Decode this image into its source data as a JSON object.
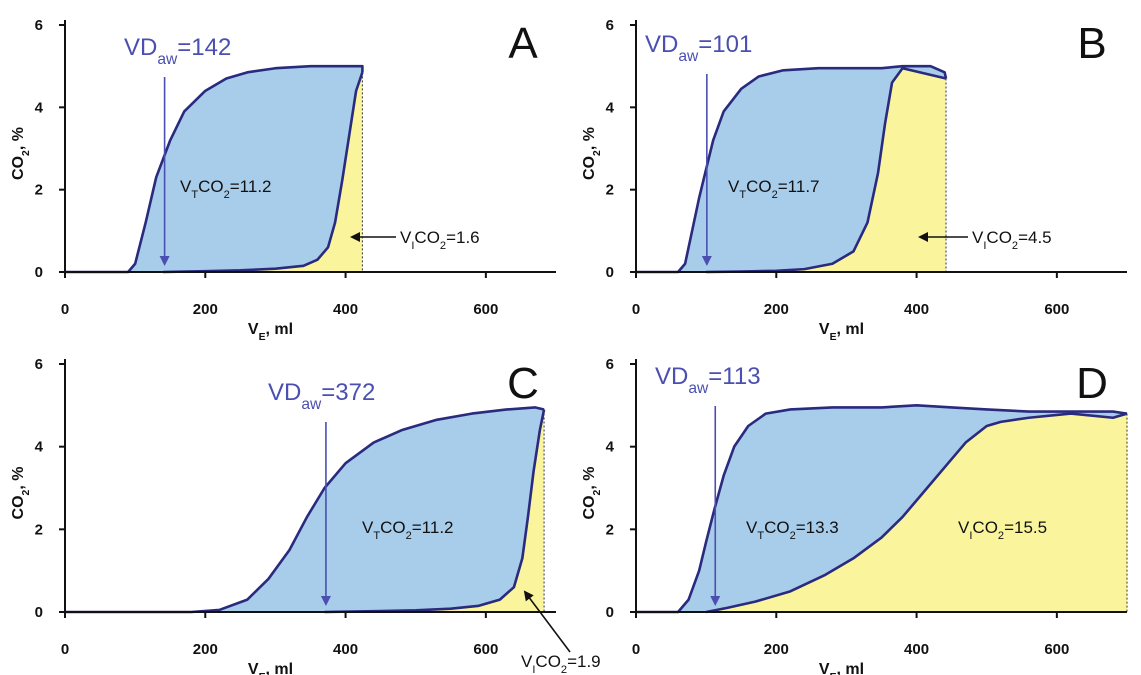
{
  "colors": {
    "blue_fill": "#a8cdea",
    "yellow_fill": "#faf59c",
    "curve": "#2a2a7e",
    "arrow_vd": "#4a4fb0",
    "arrow_vi": "#111111"
  },
  "chart_data": [
    {
      "type": "area",
      "panel": "A",
      "xlabel": {
        "main": "V",
        "sub": "E",
        "rest": ", ml"
      },
      "ylabel": {
        "main": "CO",
        "sub": "2",
        "rest": ", %"
      },
      "xlim": [
        0,
        700
      ],
      "ylim": [
        0,
        6
      ],
      "xticks": [
        "0",
        "200",
        "400",
        "600"
      ],
      "yticks": [
        "0",
        "2",
        "4",
        "6"
      ],
      "vd_label": {
        "pre": "VD",
        "sub": "aw",
        "post": "=142"
      },
      "vd_x": 142,
      "vt_label": {
        "pre": "V",
        "sub": "T",
        "mid": "CO",
        "sub2": "2",
        "post": "=11.2"
      },
      "vi_label": {
        "pre": "V",
        "sub": "I",
        "mid": "CO",
        "sub2": "2",
        "post": "=1.6"
      },
      "end_x": 424,
      "expiratory_curve": [
        [
          0,
          0
        ],
        [
          90,
          0
        ],
        [
          100,
          0.2
        ],
        [
          115,
          1.2
        ],
        [
          130,
          2.3
        ],
        [
          150,
          3.2
        ],
        [
          170,
          3.9
        ],
        [
          200,
          4.4
        ],
        [
          230,
          4.7
        ],
        [
          260,
          4.85
        ],
        [
          300,
          4.95
        ],
        [
          350,
          5.0
        ],
        [
          400,
          5.0
        ],
        [
          424,
          5.0
        ],
        [
          424,
          4.85
        ]
      ],
      "inspiratory_curve": [
        [
          424,
          4.85
        ],
        [
          415,
          4.4
        ],
        [
          405,
          3.3
        ],
        [
          395,
          2.2
        ],
        [
          385,
          1.2
        ],
        [
          375,
          0.6
        ],
        [
          360,
          0.3
        ],
        [
          340,
          0.15
        ],
        [
          300,
          0.08
        ],
        [
          250,
          0.04
        ],
        [
          200,
          0.02
        ],
        [
          140,
          0
        ]
      ]
    },
    {
      "type": "area",
      "panel": "B",
      "xlabel": {
        "main": "V",
        "sub": "E",
        "rest": ", ml"
      },
      "ylabel": {
        "main": "CO",
        "sub": "2",
        "rest": ", %"
      },
      "xlim": [
        0,
        700
      ],
      "ylim": [
        0,
        6
      ],
      "xticks": [
        "0",
        "200",
        "400",
        "600"
      ],
      "yticks": [
        "0",
        "2",
        "4",
        "6"
      ],
      "vd_label": {
        "pre": "VD",
        "sub": "aw",
        "post": "=101"
      },
      "vd_x": 101,
      "vt_label": {
        "pre": "V",
        "sub": "T",
        "mid": "CO",
        "sub2": "2",
        "post": "=11.7"
      },
      "vi_label": {
        "pre": "V",
        "sub": "I",
        "mid": "CO",
        "sub2": "2",
        "post": "=4.5"
      },
      "end_x": 442,
      "expiratory_curve": [
        [
          0,
          0
        ],
        [
          60,
          0
        ],
        [
          70,
          0.2
        ],
        [
          80,
          1.0
        ],
        [
          90,
          1.8
        ],
        [
          100,
          2.5
        ],
        [
          110,
          3.2
        ],
        [
          125,
          3.9
        ],
        [
          150,
          4.45
        ],
        [
          175,
          4.75
        ],
        [
          210,
          4.9
        ],
        [
          260,
          4.95
        ],
        [
          300,
          4.95
        ],
        [
          350,
          4.95
        ],
        [
          380,
          5.0
        ],
        [
          420,
          5.0
        ],
        [
          440,
          4.85
        ],
        [
          442,
          4.7
        ]
      ],
      "inspiratory_curve": [
        [
          442,
          4.7
        ],
        [
          380,
          4.95
        ],
        [
          365,
          4.6
        ],
        [
          355,
          3.6
        ],
        [
          345,
          2.4
        ],
        [
          330,
          1.2
        ],
        [
          310,
          0.5
        ],
        [
          280,
          0.2
        ],
        [
          240,
          0.07
        ],
        [
          200,
          0.03
        ],
        [
          150,
          0.01
        ],
        [
          100,
          0
        ]
      ]
    },
    {
      "type": "area",
      "panel": "C",
      "xlabel": {
        "main": "V",
        "sub": "E",
        "rest": ", ml"
      },
      "ylabel": {
        "main": "CO",
        "sub": "2",
        "rest": ", %"
      },
      "xlim": [
        0,
        700
      ],
      "ylim": [
        0,
        6
      ],
      "xticks": [
        "0",
        "200",
        "400",
        "600"
      ],
      "yticks": [
        "0",
        "2",
        "4",
        "6"
      ],
      "vd_label": {
        "pre": "VD",
        "sub": "aw",
        "post": "=372"
      },
      "vd_x": 372,
      "vt_label": {
        "pre": "V",
        "sub": "T",
        "mid": "CO",
        "sub2": "2",
        "post": "=11.2"
      },
      "vi_label": {
        "pre": "V",
        "sub": "I",
        "mid": "CO",
        "sub2": "2",
        "post": "=1.9"
      },
      "end_x": 683,
      "expiratory_curve": [
        [
          0,
          0
        ],
        [
          180,
          0
        ],
        [
          220,
          0.05
        ],
        [
          260,
          0.3
        ],
        [
          290,
          0.8
        ],
        [
          320,
          1.5
        ],
        [
          345,
          2.3
        ],
        [
          370,
          3.0
        ],
        [
          400,
          3.6
        ],
        [
          440,
          4.1
        ],
        [
          480,
          4.4
        ],
        [
          530,
          4.65
        ],
        [
          580,
          4.8
        ],
        [
          630,
          4.9
        ],
        [
          670,
          4.95
        ],
        [
          683,
          4.9
        ]
      ],
      "inspiratory_curve": [
        [
          683,
          4.9
        ],
        [
          677,
          4.4
        ],
        [
          668,
          3.4
        ],
        [
          660,
          2.3
        ],
        [
          652,
          1.3
        ],
        [
          640,
          0.6
        ],
        [
          620,
          0.3
        ],
        [
          590,
          0.15
        ],
        [
          550,
          0.08
        ],
        [
          500,
          0.04
        ],
        [
          440,
          0.02
        ],
        [
          370,
          0
        ]
      ]
    },
    {
      "type": "area",
      "panel": "D",
      "xlabel": {
        "main": "V",
        "sub": "E",
        "rest": ", ml"
      },
      "ylabel": {
        "main": "CO",
        "sub": "2",
        "rest": ", %"
      },
      "xlim": [
        0,
        700
      ],
      "ylim": [
        0,
        6
      ],
      "xticks": [
        "0",
        "200",
        "400",
        "600"
      ],
      "yticks": [
        "0",
        "2",
        "4",
        "6"
      ],
      "vd_label": {
        "pre": "VD",
        "sub": "aw",
        "post": "=113"
      },
      "vd_x": 113,
      "vt_label": {
        "pre": "V",
        "sub": "T",
        "mid": "CO",
        "sub2": "2",
        "post": "=13.3"
      },
      "vi_label": {
        "pre": "V",
        "sub": "I",
        "mid": "CO",
        "sub2": "2",
        "post": "=15.5"
      },
      "end_x": 700,
      "expiratory_curve": [
        [
          0,
          0
        ],
        [
          60,
          0
        ],
        [
          75,
          0.3
        ],
        [
          90,
          1.0
        ],
        [
          100,
          1.7
        ],
        [
          112,
          2.5
        ],
        [
          125,
          3.3
        ],
        [
          140,
          4.0
        ],
        [
          160,
          4.5
        ],
        [
          185,
          4.8
        ],
        [
          220,
          4.9
        ],
        [
          280,
          4.95
        ],
        [
          350,
          4.95
        ],
        [
          400,
          5.0
        ],
        [
          450,
          4.95
        ],
        [
          500,
          4.9
        ],
        [
          560,
          4.85
        ],
        [
          620,
          4.85
        ],
        [
          680,
          4.85
        ],
        [
          700,
          4.8
        ]
      ],
      "inspiratory_curve": [
        [
          700,
          4.8
        ],
        [
          680,
          4.7
        ],
        [
          620,
          4.8
        ],
        [
          560,
          4.7
        ],
        [
          520,
          4.6
        ],
        [
          500,
          4.5
        ],
        [
          470,
          4.1
        ],
        [
          440,
          3.5
        ],
        [
          410,
          2.9
        ],
        [
          380,
          2.3
        ],
        [
          350,
          1.8
        ],
        [
          310,
          1.3
        ],
        [
          270,
          0.9
        ],
        [
          220,
          0.5
        ],
        [
          170,
          0.25
        ],
        [
          130,
          0.1
        ],
        [
          100,
          0
        ]
      ]
    }
  ]
}
